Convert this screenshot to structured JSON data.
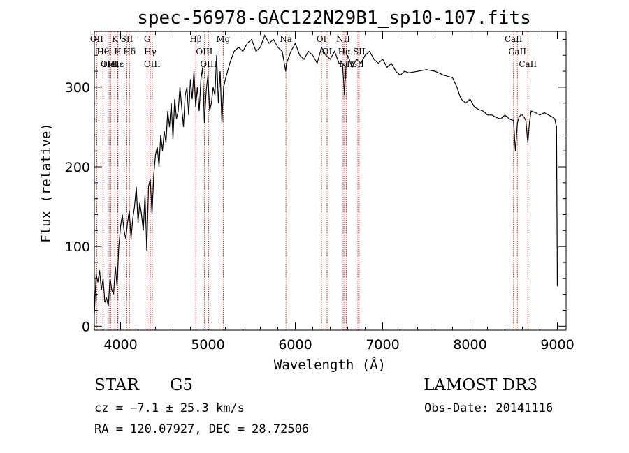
{
  "chart_data": {
    "type": "line",
    "title": "spec-56978-GAC122N29B1_sp10-107.fits",
    "xlabel": "Wavelength (Å)",
    "ylabel": "Flux (relative)",
    "xlim": [
      3700,
      9100
    ],
    "ylim": [
      -5,
      370
    ],
    "xticks": [
      4000,
      5000,
      6000,
      7000,
      8000,
      9000
    ],
    "yticks": [
      0,
      100,
      200,
      300
    ],
    "grid": false,
    "series": [
      {
        "x": [
          3700,
          3720,
          3740,
          3760,
          3780,
          3800,
          3820,
          3840,
          3860,
          3880,
          3900,
          3920,
          3940,
          3960,
          3980,
          4000,
          4020,
          4040,
          4060,
          4080,
          4100,
          4120,
          4140,
          4160,
          4180,
          4200,
          4220,
          4240,
          4260,
          4280,
          4300,
          4320,
          4340,
          4360,
          4380,
          4400,
          4420,
          4440,
          4460,
          4480,
          4500,
          4520,
          4540,
          4560,
          4580,
          4600,
          4620,
          4640,
          4660,
          4680,
          4700,
          4720,
          4740,
          4760,
          4780,
          4800,
          4820,
          4840,
          4860,
          4880,
          4900,
          4920,
          4940,
          4960,
          4980,
          5000,
          5020,
          5040,
          5060,
          5080,
          5100,
          5120,
          5140,
          5160,
          5180,
          5200,
          5250,
          5300,
          5350,
          5400,
          5450,
          5500,
          5550,
          5600,
          5650,
          5700,
          5750,
          5800,
          5850,
          5890,
          5900,
          5950,
          6000,
          6050,
          6100,
          6150,
          6200,
          6250,
          6300,
          6350,
          6400,
          6450,
          6500,
          6540,
          6563,
          6580,
          6600,
          6650,
          6700,
          6750,
          6800,
          6850,
          6900,
          6950,
          7000,
          7050,
          7100,
          7150,
          7200,
          7250,
          7300,
          7400,
          7500,
          7600,
          7700,
          7800,
          7850,
          7880,
          7900,
          7950,
          8000,
          8050,
          8100,
          8150,
          8200,
          8250,
          8300,
          8350,
          8400,
          8450,
          8498,
          8520,
          8542,
          8560,
          8580,
          8600,
          8620,
          8640,
          8662,
          8680,
          8700,
          8750,
          8800,
          8850,
          8900,
          8950,
          8970,
          8990,
          9000
        ],
        "y": [
          15,
          65,
          55,
          70,
          45,
          60,
          30,
          35,
          25,
          60,
          45,
          40,
          75,
          50,
          100,
          125,
          140,
          120,
          110,
          130,
          145,
          110,
          135,
          150,
          175,
          130,
          155,
          140,
          120,
          165,
          95,
          175,
          185,
          140,
          190,
          215,
          225,
          200,
          240,
          220,
          245,
          230,
          270,
          250,
          280,
          235,
          285,
          260,
          270,
          300,
          275,
          250,
          290,
          300,
          265,
          310,
          285,
          320,
          275,
          300,
          270,
          310,
          325,
          255,
          295,
          315,
          270,
          280,
          300,
          290,
          340,
          280,
          320,
          255,
          300,
          310,
          330,
          345,
          350,
          345,
          355,
          360,
          345,
          350,
          365,
          355,
          360,
          350,
          345,
          320,
          330,
          345,
          355,
          340,
          335,
          345,
          340,
          330,
          350,
          340,
          335,
          345,
          330,
          330,
          290,
          325,
          340,
          325,
          335,
          330,
          340,
          345,
          335,
          330,
          335,
          325,
          330,
          320,
          315,
          320,
          318,
          320,
          322,
          320,
          315,
          312,
          300,
          290,
          285,
          280,
          285,
          275,
          272,
          270,
          265,
          265,
          262,
          260,
          265,
          260,
          258,
          220,
          255,
          262,
          265,
          265,
          262,
          258,
          230,
          255,
          270,
          268,
          265,
          268,
          265,
          262,
          260,
          250,
          50
        ]
      }
    ],
    "spectral_lines": [
      {
        "label": "Hθ",
        "wavelength": 3798
      },
      {
        "label": "OII",
        "wavelength": 3727
      },
      {
        "label": "OIII",
        "wavelength": 3869
      },
      {
        "label": "HeI",
        "wavelength": 3889
      },
      {
        "label": "K",
        "wavelength": 3934
      },
      {
        "label": "Hε",
        "wavelength": 3970
      },
      {
        "label": "H",
        "wavelength": 3968
      },
      {
        "label": "SII",
        "wavelength": 4072
      },
      {
        "label": "Hδ",
        "wavelength": 4102
      },
      {
        "label": "G",
        "wavelength": 4305
      },
      {
        "label": "Hγ",
        "wavelength": 4340
      },
      {
        "label": "OIII",
        "wavelength": 4363
      },
      {
        "label": "Hβ",
        "wavelength": 4861
      },
      {
        "label": "OIII",
        "wavelength": 4959
      },
      {
        "label": "OIII",
        "wavelength": 5007
      },
      {
        "label": "Mg",
        "wavelength": 5175
      },
      {
        "label": "Na",
        "wavelength": 5893
      },
      {
        "label": "OI",
        "wavelength": 6300
      },
      {
        "label": "OI",
        "wavelength": 6364
      },
      {
        "label": "NII",
        "wavelength": 6548
      },
      {
        "label": "Hα",
        "wavelength": 6563
      },
      {
        "label": "NII",
        "wavelength": 6583
      },
      {
        "label": "SII",
        "wavelength": 6716
      },
      {
        "label": "SII",
        "wavelength": 6731
      },
      {
        "label": "CaII",
        "wavelength": 8498
      },
      {
        "label": "CaII",
        "wavelength": 8542
      },
      {
        "label": "CaII",
        "wavelength": 8662
      }
    ]
  },
  "info": {
    "object_class": "STAR",
    "subclass": "G5",
    "survey": "LAMOST DR3",
    "cz": "cz = −7.1 ± 25.3 km/s",
    "obs_date": "Obs-Date: 20141116",
    "coords": "RA = 120.07927, DEC =  28.72506"
  },
  "colors": {
    "spectrum": "#000000",
    "line_markers": "#cc0000",
    "axes": "#000000",
    "background": "#ffffff"
  }
}
